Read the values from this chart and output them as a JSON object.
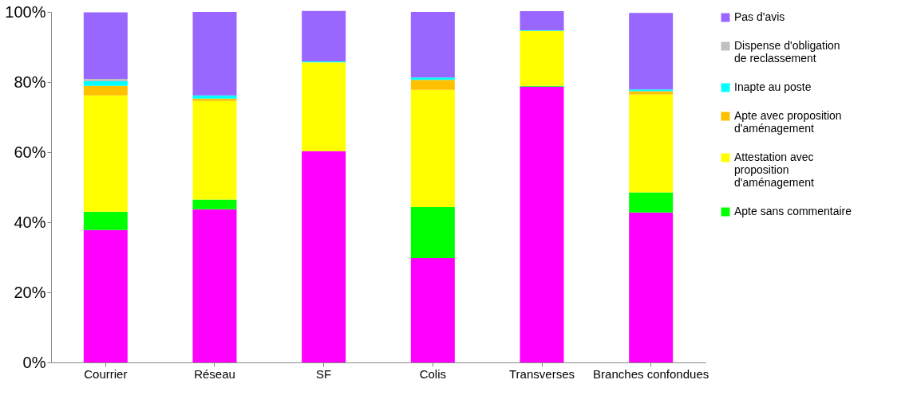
{
  "chart_data": {
    "type": "bar",
    "stacked": true,
    "categories": [
      "Courrier",
      "Réseau",
      "SF",
      "Colis",
      "Transverses",
      "Branches confondues"
    ],
    "series": [
      {
        "color": "#ff00ff",
        "values": [
          37.8,
          43.7,
          60.3,
          29.8,
          78.7,
          42.8
        ]
      },
      {
        "name": "Apte sans commentaire",
        "color": "#00ff00",
        "values": [
          5.2,
          2.8,
          null,
          14.5,
          0.2,
          5.7
        ]
      },
      {
        "name": "Attestation avec proposition d'aménagement",
        "color": "#ffff00",
        "values": [
          33.2,
          28.1,
          25.3,
          33.5,
          15.7,
          28.0
        ]
      },
      {
        "name": "Apte avec proposition d'aménagement",
        "color": "#ffc000",
        "values": [
          2.7,
          0.7,
          0.0,
          2.8,
          0.0,
          0.9
        ]
      },
      {
        "name": "Inapte au poste",
        "color": "#00ffff",
        "values": [
          1.3,
          0.9,
          0.3,
          0.7,
          0.2,
          0.5
        ]
      },
      {
        "name": "Dispense d'obligation de reclassement",
        "color": "#c0c0c0",
        "values": [
          0.7,
          0.0,
          0.0,
          0.0,
          0.0,
          null
        ]
      },
      {
        "name": "Pas d'avis",
        "color": "#9966ff",
        "values": [
          19.0,
          23.8,
          14.4,
          18.7,
          5.4,
          21.8
        ]
      }
    ],
    "ylim": [
      0,
      100
    ],
    "yticks": [
      {
        "value": 0,
        "label": "0%"
      },
      {
        "value": 20,
        "label": "20%"
      },
      {
        "value": 40,
        "label": "40%"
      },
      {
        "value": 60,
        "label": "60%"
      },
      {
        "value": 80,
        "label": "80%"
      },
      {
        "value": 100,
        "label": "100%"
      }
    ],
    "grid": false,
    "legend": "right"
  }
}
